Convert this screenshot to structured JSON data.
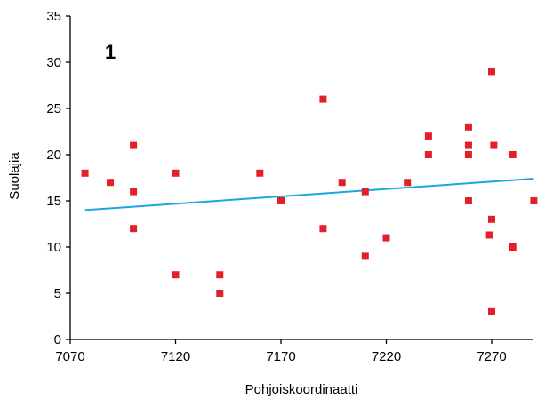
{
  "chart_data": {
    "type": "scatter",
    "panel_label": "1",
    "xlabel": "Pohjoiskoordinaatti",
    "ylabel": "Suolajia",
    "xlim": [
      7070,
      7295
    ],
    "ylim": [
      0,
      35
    ],
    "xticks": [
      7070,
      7120,
      7170,
      7220,
      7270
    ],
    "yticks": [
      0,
      5,
      10,
      15,
      20,
      25,
      30,
      35
    ],
    "grid": false,
    "colors": {
      "points": "#e3202a",
      "trend": "#1aa7df",
      "axis": "#000000"
    },
    "points": [
      {
        "x": 7077,
        "y": 18
      },
      {
        "x": 7089,
        "y": 17
      },
      {
        "x": 7100,
        "y": 21
      },
      {
        "x": 7100,
        "y": 16
      },
      {
        "x": 7100,
        "y": 12
      },
      {
        "x": 7120,
        "y": 18
      },
      {
        "x": 7120,
        "y": 7
      },
      {
        "x": 7141,
        "y": 7
      },
      {
        "x": 7141,
        "y": 5
      },
      {
        "x": 7160,
        "y": 18
      },
      {
        "x": 7170,
        "y": 15
      },
      {
        "x": 7190,
        "y": 26
      },
      {
        "x": 7190,
        "y": 12
      },
      {
        "x": 7199,
        "y": 17
      },
      {
        "x": 7210,
        "y": 16
      },
      {
        "x": 7210,
        "y": 9
      },
      {
        "x": 7220,
        "y": 11
      },
      {
        "x": 7230,
        "y": 17
      },
      {
        "x": 7240,
        "y": 22
      },
      {
        "x": 7240,
        "y": 20
      },
      {
        "x": 7259,
        "y": 23
      },
      {
        "x": 7259,
        "y": 21
      },
      {
        "x": 7259,
        "y": 20
      },
      {
        "x": 7259,
        "y": 15
      },
      {
        "x": 7269,
        "y": 11.3
      },
      {
        "x": 7270,
        "y": 29
      },
      {
        "x": 7271,
        "y": 21
      },
      {
        "x": 7270,
        "y": 13
      },
      {
        "x": 7270,
        "y": 3
      },
      {
        "x": 7280,
        "y": 20
      },
      {
        "x": 7280,
        "y": 10
      },
      {
        "x": 7290,
        "y": 15
      }
    ],
    "trendline": {
      "x": [
        7077,
        7290
      ],
      "y": [
        14.0,
        17.4
      ]
    }
  }
}
